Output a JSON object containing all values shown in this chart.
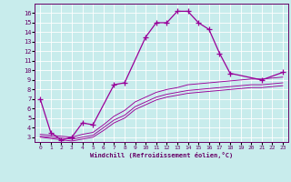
{
  "background_color": "#c8ecec",
  "line_color": "#990099",
  "grid_color": "#ffffff",
  "xlabel": "Windchill (Refroidissement éolien,°C)",
  "ylim": [
    2.5,
    17.0
  ],
  "xlim": [
    -0.5,
    23.5
  ],
  "yticks": [
    3,
    4,
    5,
    6,
    7,
    8,
    9,
    10,
    11,
    12,
    13,
    14,
    15,
    16
  ],
  "xticks": [
    0,
    1,
    2,
    3,
    4,
    5,
    6,
    7,
    8,
    9,
    10,
    11,
    12,
    13,
    14,
    15,
    16,
    17,
    18,
    19,
    20,
    21,
    22,
    23
  ],
  "main_x": [
    0,
    1,
    2,
    3,
    4,
    5,
    7,
    8,
    10,
    11,
    12,
    13,
    14,
    15,
    16,
    17,
    18,
    21,
    23
  ],
  "main_y": [
    7.0,
    3.5,
    2.7,
    3.0,
    4.5,
    4.3,
    8.5,
    8.7,
    13.5,
    15.0,
    15.0,
    16.2,
    16.2,
    15.0,
    14.3,
    11.8,
    9.7,
    9.0,
    9.8
  ],
  "diag1_x": [
    0,
    3,
    4,
    5,
    6,
    7,
    8,
    9,
    10,
    11,
    12,
    13,
    14,
    15,
    16,
    17,
    18,
    19,
    20,
    21,
    22,
    23
  ],
  "diag1_y": [
    3.3,
    3.0,
    3.3,
    3.5,
    4.3,
    5.2,
    5.8,
    6.7,
    7.2,
    7.7,
    8.0,
    8.2,
    8.5,
    8.6,
    8.7,
    8.8,
    8.9,
    9.0,
    9.1,
    9.1,
    9.2,
    9.3
  ],
  "diag2_x": [
    0,
    3,
    4,
    5,
    6,
    7,
    8,
    9,
    10,
    11,
    12,
    13,
    14,
    15,
    16,
    17,
    18,
    19,
    20,
    21,
    22,
    23
  ],
  "diag2_y": [
    3.1,
    2.8,
    3.0,
    3.2,
    4.0,
    4.8,
    5.3,
    6.2,
    6.7,
    7.2,
    7.5,
    7.7,
    7.9,
    8.0,
    8.1,
    8.2,
    8.3,
    8.4,
    8.5,
    8.5,
    8.6,
    8.7
  ],
  "diag3_x": [
    0,
    3,
    4,
    5,
    6,
    7,
    8,
    9,
    10,
    11,
    12,
    13,
    14,
    15,
    16,
    17,
    18,
    19,
    20,
    21,
    22,
    23
  ],
  "diag3_y": [
    3.0,
    2.6,
    2.8,
    3.0,
    3.7,
    4.5,
    5.0,
    5.9,
    6.4,
    6.9,
    7.2,
    7.4,
    7.6,
    7.7,
    7.8,
    7.9,
    8.0,
    8.1,
    8.2,
    8.2,
    8.3,
    8.4
  ]
}
